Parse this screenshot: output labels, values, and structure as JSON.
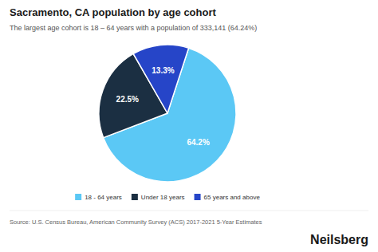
{
  "chart_data": {
    "type": "pie",
    "title": "Sacramento, CA population by age cohort",
    "subtitle": "The largest age cohort is 18 – 64 years with a population of 333,141 (64.24%)",
    "categories": [
      "18 - 64 years",
      "Under 18 years",
      "65 years and above"
    ],
    "values": [
      64.2,
      22.5,
      13.3
    ],
    "value_labels": [
      "64.2%",
      "22.5%",
      "13.3%"
    ],
    "colors": [
      "#5bc8f5",
      "#1b2f42",
      "#2645c8"
    ],
    "data_labels": true,
    "legend": "bottom",
    "annotations": [
      "Source: U.S. Census Bureau, American Community Survey (ACS) 2017-2021 5-Year Estimates",
      "Neilsberg"
    ]
  }
}
